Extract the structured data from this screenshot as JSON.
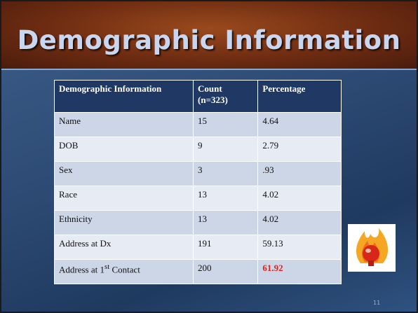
{
  "header": {
    "title": "Demographic Information"
  },
  "table": {
    "columns": [
      "Demographic Information",
      [
        "Count",
        "(n=323)"
      ],
      "Percentage"
    ],
    "rows": [
      [
        "Name",
        "15",
        "4.64"
      ],
      [
        "DOB",
        "9",
        "2.79"
      ],
      [
        "Sex",
        "3",
        ".93"
      ],
      [
        "Race",
        "13",
        "4.02"
      ],
      [
        "Ethnicity",
        "13",
        "4.02"
      ],
      [
        "Address at Dx",
        "191",
        "59.13"
      ],
      [
        [
          "Address at 1",
          "st",
          " Contact"
        ],
        "200",
        "61.92"
      ]
    ]
  },
  "footer": {
    "slide_number": "11"
  }
}
